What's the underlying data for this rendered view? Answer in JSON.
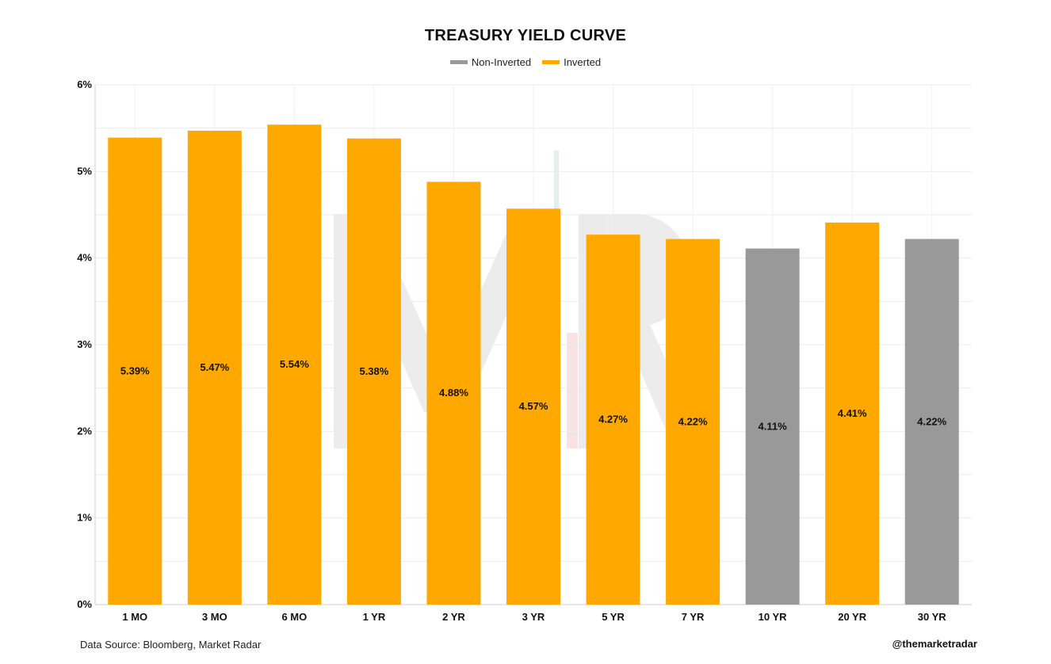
{
  "chart_data": {
    "type": "bar",
    "title": "TREASURY YIELD CURVE",
    "xlabel": "",
    "ylabel": "",
    "categories": [
      "1 MO",
      "3 MO",
      "6 MO",
      "1 YR",
      "2 YR",
      "3 YR",
      "5 YR",
      "7 YR",
      "10 YR",
      "20 YR",
      "30 YR"
    ],
    "values": [
      5.39,
      5.47,
      5.54,
      5.38,
      4.88,
      4.57,
      4.27,
      4.22,
      4.11,
      4.41,
      4.22
    ],
    "value_labels": [
      "5.39%",
      "5.47%",
      "5.54%",
      "5.38%",
      "4.88%",
      "4.57%",
      "4.27%",
      "4.22%",
      "4.11%",
      "4.41%",
      "4.22%"
    ],
    "bar_group": [
      "Inverted",
      "Inverted",
      "Inverted",
      "Inverted",
      "Inverted",
      "Inverted",
      "Inverted",
      "Inverted",
      "Non-Inverted",
      "Inverted",
      "Non-Inverted"
    ],
    "legend": [
      {
        "name": "Non-Inverted",
        "color": "#999999"
      },
      {
        "name": "Inverted",
        "color": "#FFA800"
      }
    ],
    "legend_position": "top-center",
    "ylim": [
      0,
      6
    ],
    "yticks": [
      0,
      1,
      2,
      3,
      4,
      5,
      6
    ],
    "ytick_labels": [
      "0%",
      "1%",
      "2%",
      "3%",
      "4%",
      "5%",
      "6%"
    ],
    "grid": true
  },
  "footer": {
    "source": "Data Source: Bloomberg, Market Radar",
    "handle": "@themarketradar"
  }
}
